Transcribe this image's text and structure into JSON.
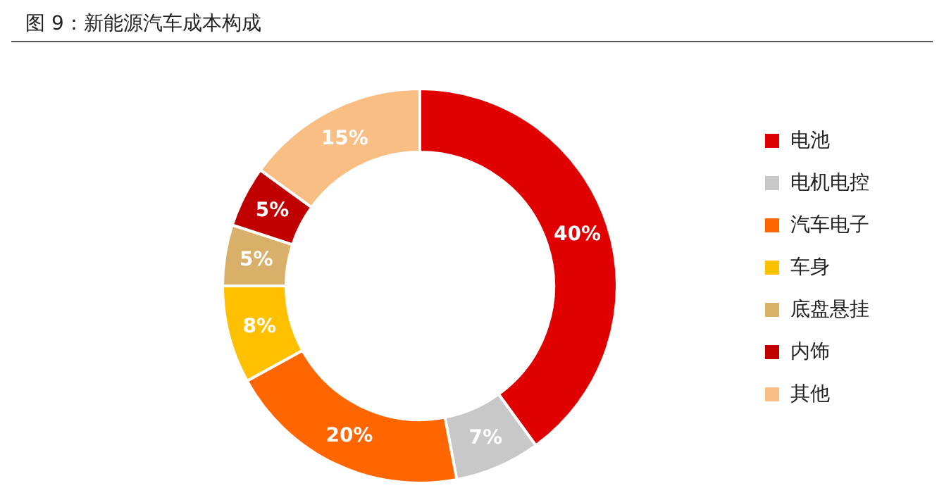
{
  "chart_data": {
    "type": "donut",
    "title": "图 9：新能源汽车成本构成",
    "categories": [
      "电池",
      "电机电控",
      "汽车电子",
      "车身",
      "底盘悬挂",
      "内饰",
      "其他"
    ],
    "values": [
      40,
      7,
      20,
      8,
      5,
      5,
      15
    ],
    "value_labels": [
      "40%",
      "7%",
      "20%",
      "8%",
      "5%",
      "5%",
      "15%"
    ],
    "colors": [
      "#e00000",
      "#c8c8c8",
      "#ff6600",
      "#ffc000",
      "#d8b06a",
      "#c00000",
      "#f8be84"
    ],
    "legend": "right"
  }
}
